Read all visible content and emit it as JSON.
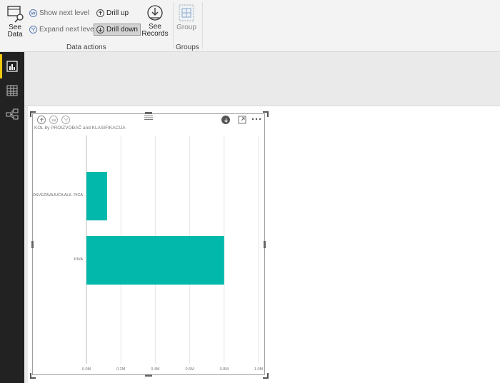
{
  "ribbon": {
    "see_data": "See Data",
    "show_next_level": "Show next level",
    "expand_next_level": "Expand next level",
    "drill_up": "Drill up",
    "drill_down": "Drill down",
    "see_records": "See Records",
    "data_actions_caption": "Data actions",
    "group": "Group",
    "groups_caption": "Groups"
  },
  "nav": {
    "items": [
      "report-icon",
      "data-icon",
      "relationships-icon"
    ],
    "active_color": "#f2c811"
  },
  "visual": {
    "title": "KOL by PROIZVOĐAČ and KLASIFIKACIJA"
  },
  "chart_data": {
    "type": "bar",
    "orientation": "horizontal",
    "title": "KOL by PROIZVOĐAČ and KLASIFIKACIJA",
    "categories": [
      "OSVEŽAVAJUĆA ALK. PICA",
      "PIVA"
    ],
    "values": [
      0.12,
      0.8
    ],
    "value_unit": "M",
    "xlim": [
      0,
      1.0
    ],
    "ticks": [
      "0.0M",
      "0.2M",
      "0.4M",
      "0.6M",
      "0.8M",
      "1.0M"
    ],
    "color": "#01b8aa",
    "grid": true
  }
}
